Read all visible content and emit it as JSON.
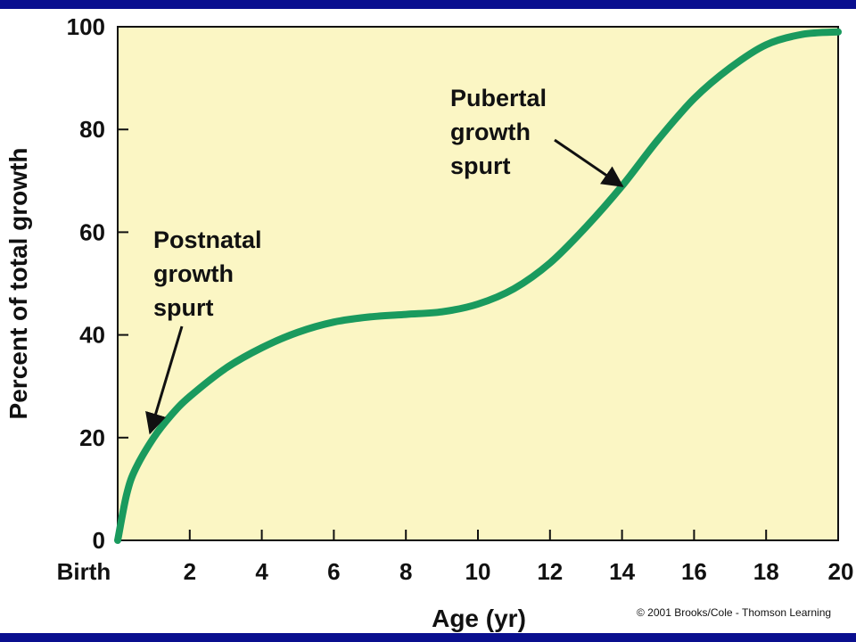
{
  "chart_data": {
    "type": "line",
    "xlabel": "Age (yr)",
    "ylabel": "Percent of total growth",
    "xlim": [
      0,
      20
    ],
    "ylim": [
      0,
      100
    ],
    "x_ticks": [
      {
        "value": 0,
        "label": "Birth"
      },
      {
        "value": 2,
        "label": "2"
      },
      {
        "value": 4,
        "label": "4"
      },
      {
        "value": 6,
        "label": "6"
      },
      {
        "value": 8,
        "label": "8"
      },
      {
        "value": 10,
        "label": "10"
      },
      {
        "value": 12,
        "label": "12"
      },
      {
        "value": 14,
        "label": "14"
      },
      {
        "value": 16,
        "label": "16"
      },
      {
        "value": 18,
        "label": "18"
      },
      {
        "value": 20,
        "label": "20"
      }
    ],
    "y_ticks": [
      0,
      20,
      40,
      60,
      80,
      100
    ],
    "grid": false,
    "series": [
      {
        "color": "#1a9a5e",
        "x": [
          0,
          0.25,
          0.5,
          1,
          1.5,
          2,
          3,
          4,
          5,
          6,
          7,
          8,
          9,
          10,
          11,
          12,
          13,
          14,
          15,
          16,
          17,
          18,
          19,
          20
        ],
        "y": [
          0,
          9,
          14,
          20,
          24.5,
          28,
          33.5,
          37.5,
          40.5,
          42.5,
          43.5,
          44,
          44.5,
          46,
          49,
          54,
          61,
          69,
          78,
          86,
          92,
          96.5,
          98.5,
          99
        ]
      }
    ],
    "annotations": [
      {
        "lines": [
          "Postnatal",
          "growth",
          "spurt"
        ],
        "points_to": {
          "x": 0.9,
          "y": 21
        }
      },
      {
        "lines": [
          "Pubertal",
          "growth",
          "spurt"
        ],
        "points_to": {
          "x": 14,
          "y": 69
        }
      }
    ]
  },
  "colors": {
    "plot_background": "#fbf6c4",
    "band": "#0a0f8f",
    "curve": "#1a9a5e"
  },
  "copyright": "© 2001 Brooks/Cole - Thomson Learning"
}
